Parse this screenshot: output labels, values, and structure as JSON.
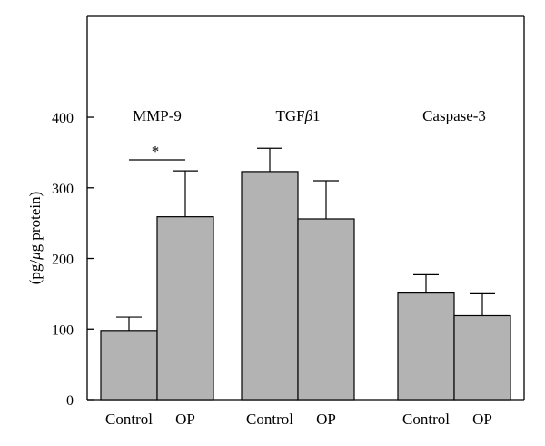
{
  "chart_data": {
    "type": "bar",
    "ylabel": "(pg/μg protein)",
    "ylabel_parts": [
      "(pg/",
      "μ",
      "g protein)"
    ],
    "ylim": [
      0,
      540
    ],
    "yticks": [
      0,
      100,
      200,
      300,
      400
    ],
    "groups": [
      {
        "label": "MMP-9",
        "label_parts": [
          "MMP-9",
          ""
        ],
        "bars": [
          {
            "category": "Control",
            "value": 98,
            "error": 19
          },
          {
            "category": "OP",
            "value": 259,
            "error": 65
          }
        ],
        "significance": "*"
      },
      {
        "label": "TGFβ1",
        "label_parts": [
          "TGF",
          "β",
          "1"
        ],
        "bars": [
          {
            "category": "Control",
            "value": 323,
            "error": 33
          },
          {
            "category": "OP",
            "value": 256,
            "error": 54
          }
        ],
        "significance": ""
      },
      {
        "label": "Caspase-3",
        "label_parts": [
          "Caspase-3",
          ""
        ],
        "bars": [
          {
            "category": "Control",
            "value": 151,
            "error": 26
          },
          {
            "category": "OP",
            "value": 119,
            "error": 31
          }
        ],
        "significance": ""
      }
    ],
    "colors": {
      "bar_fill": "#b3b3b3",
      "stroke": "#000000"
    },
    "grid": false
  }
}
